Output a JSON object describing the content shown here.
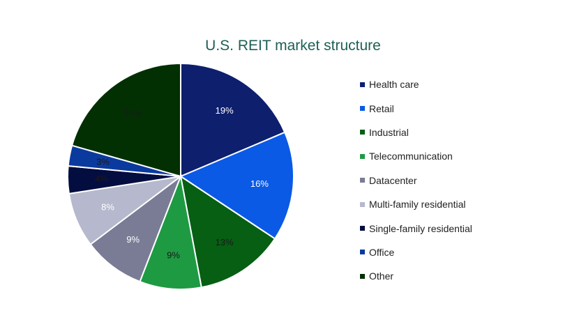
{
  "chart_data": {
    "type": "pie",
    "title": "U.S. REIT market structure",
    "legend_position": "right",
    "slices": [
      {
        "label": "Health care",
        "value": 19,
        "display": "19%",
        "color": "#0e1f6e",
        "label_color": "#ffffff"
      },
      {
        "label": "Retail",
        "value": 16,
        "display": "16%",
        "color": "#0a5ae6",
        "label_color": "#ffffff"
      },
      {
        "label": "Industrial",
        "value": 13,
        "display": "13%",
        "color": "#065f13",
        "label_color": "#1a1a1a"
      },
      {
        "label": "Telecommunication",
        "value": 9,
        "display": "9%",
        "color": "#1e9a43",
        "label_color": "#1a1a1a"
      },
      {
        "label": "Datacenter",
        "value": 9,
        "display": "9%",
        "color": "#7a7c95",
        "label_color": "#ffffff"
      },
      {
        "label": "Multi-family residential",
        "value": 8,
        "display": "8%",
        "color": "#b6b9cd",
        "label_color": "#ffffff"
      },
      {
        "label": "Single-family residential",
        "value": 4,
        "display": "4%",
        "color": "#040d3f",
        "label_color": "#1a1a1a"
      },
      {
        "label": "Office",
        "value": 3,
        "display": "3%",
        "color": "#0b3a9e",
        "label_color": "#1a1a1a"
      },
      {
        "label": "Other",
        "value": 21,
        "display": "21%",
        "color": "#023003",
        "label_color": "#1a1a1a"
      }
    ]
  }
}
